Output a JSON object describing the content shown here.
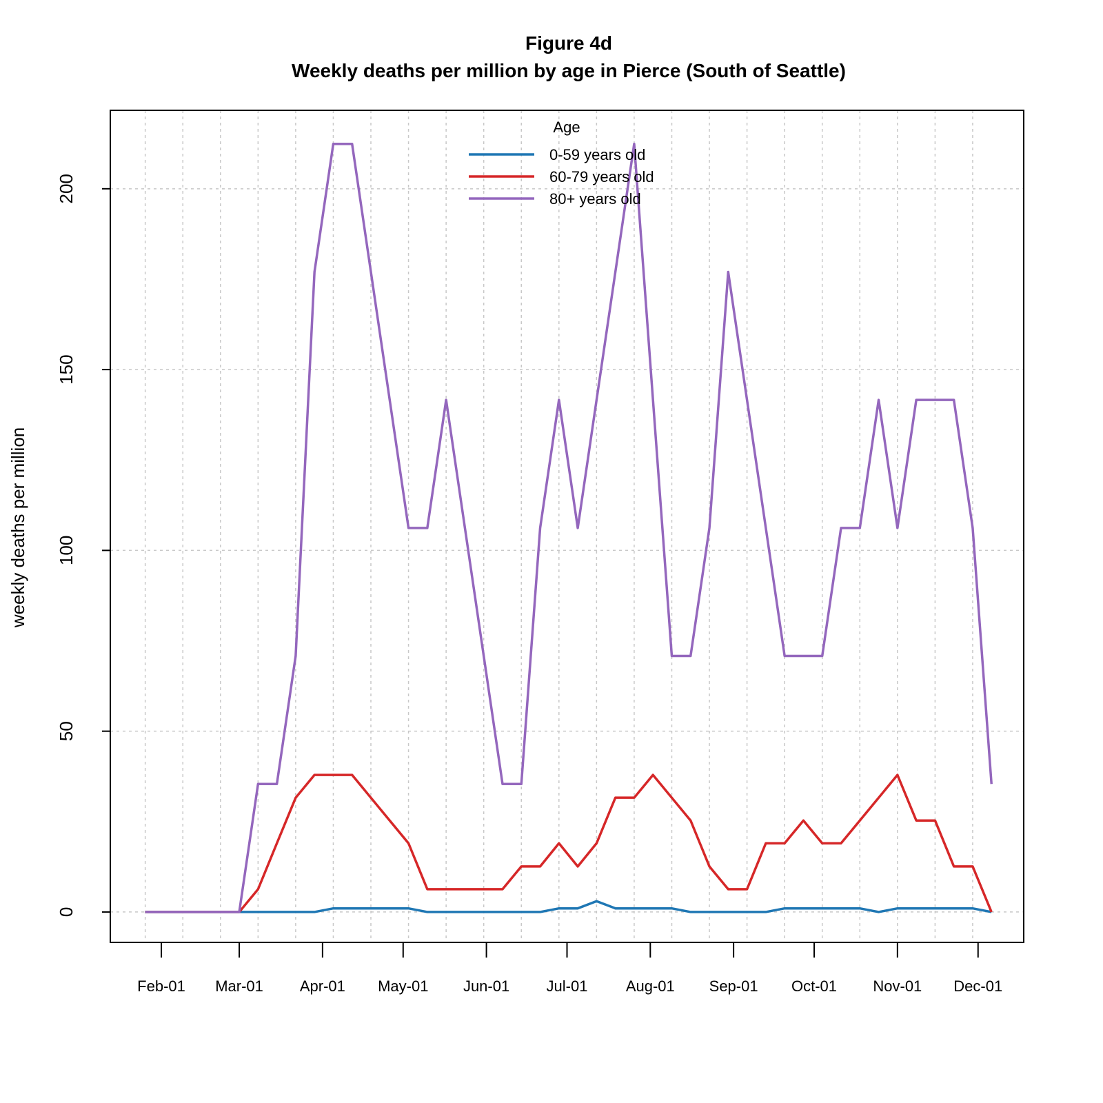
{
  "chart_data": {
    "type": "line",
    "title": "Figure 4d",
    "subtitle": "Weekly deaths per million by age in Pierce (South of Seattle)",
    "ylabel": "weekly deaths per million",
    "legend_title": "Age",
    "legend": "top",
    "grid": true,
    "x": [
      "Jan-26",
      "Feb-02",
      "Feb-09",
      "Feb-16",
      "Feb-23",
      "Mar-01",
      "Mar-08",
      "Mar-15",
      "Mar-22",
      "Mar-29",
      "Apr-05",
      "Apr-12",
      "Apr-19",
      "Apr-26",
      "May-03",
      "May-10",
      "May-17",
      "May-24",
      "May-31",
      "Jun-07",
      "Jun-14",
      "Jun-21",
      "Jun-28",
      "Jul-05",
      "Jul-12",
      "Jul-19",
      "Jul-26",
      "Aug-02",
      "Aug-09",
      "Aug-16",
      "Aug-23",
      "Aug-30",
      "Sep-06",
      "Sep-13",
      "Sep-20",
      "Sep-27",
      "Oct-04",
      "Oct-11",
      "Oct-18",
      "Oct-25",
      "Nov-01",
      "Nov-08",
      "Nov-15",
      "Nov-22",
      "Nov-29",
      "Dec-06"
    ],
    "xlim": [
      "Jan-13",
      "Dec-18"
    ],
    "xticks": [
      "Feb-01",
      "Mar-01",
      "Apr-01",
      "May-01",
      "Jun-01",
      "Jul-01",
      "Aug-01",
      "Sep-01",
      "Oct-01",
      "Nov-01",
      "Dec-01"
    ],
    "ylim": [
      -8.4,
      221.7
    ],
    "yticks": [
      0,
      50,
      100,
      150,
      200
    ],
    "series": [
      {
        "name": "0-59 years old",
        "color": "#1f77b4",
        "values": [
          0,
          0,
          0,
          0,
          0,
          0,
          0,
          0,
          0,
          0,
          1,
          1,
          1,
          1,
          1,
          0,
          0,
          0,
          0,
          0,
          0,
          0,
          1,
          1,
          3,
          1,
          1,
          1,
          1,
          0,
          0,
          0,
          0,
          0,
          1,
          1,
          1,
          1,
          1,
          0,
          1,
          1,
          1,
          1,
          1,
          0
        ]
      },
      {
        "name": "60-79 years old",
        "color": "#d62728",
        "values": [
          0,
          0,
          0,
          0,
          0,
          0,
          6.3,
          19,
          31.6,
          37.9,
          37.9,
          37.9,
          31.6,
          25.3,
          19,
          6.3,
          6.3,
          6.3,
          6.3,
          6.3,
          12.6,
          12.6,
          19,
          12.6,
          19,
          31.6,
          31.6,
          37.9,
          31.6,
          25.3,
          12.6,
          6.3,
          6.3,
          19,
          19,
          25.3,
          19,
          19,
          25.3,
          31.6,
          37.9,
          25.3,
          25.3,
          12.6,
          12.6,
          0
        ]
      },
      {
        "name": "80+ years old",
        "color": "#9467bd",
        "values": [
          0,
          0,
          0,
          0,
          0,
          0,
          35.4,
          35.4,
          70.8,
          177,
          212.4,
          212.4,
          177,
          141.6,
          106.2,
          106.2,
          141.6,
          106.2,
          70.8,
          35.4,
          35.4,
          106.2,
          141.6,
          106.2,
          141.6,
          177,
          212.4,
          141.6,
          70.8,
          70.8,
          106.2,
          177,
          141.6,
          106.2,
          70.8,
          70.8,
          70.8,
          106.2,
          106.2,
          141.6,
          106.2,
          141.6,
          141.6,
          141.6,
          106.2,
          35.4
        ]
      }
    ]
  }
}
